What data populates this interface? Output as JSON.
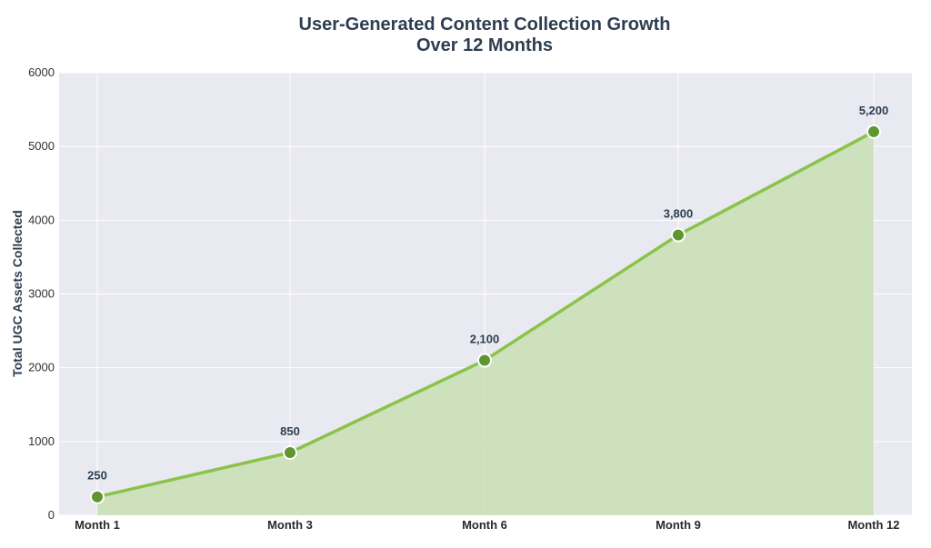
{
  "chart_data": {
    "type": "area",
    "title_lines": [
      "User-Generated Content Collection Growth",
      "Over 12 Months"
    ],
    "xlabel": "",
    "ylabel": "Total UGC Assets Collected",
    "categories": [
      "Month 1",
      "Month 3",
      "Month 6",
      "Month 9",
      "Month 12"
    ],
    "values": [
      250,
      850,
      2100,
      3800,
      5200
    ],
    "data_labels": [
      "250",
      "850",
      "2,100",
      "3,800",
      "5,200"
    ],
    "ylim": [
      0,
      6000
    ],
    "yticks": [
      "0",
      "1000",
      "2000",
      "3000",
      "4000",
      "5000",
      "6000"
    ],
    "grid": true,
    "colors": {
      "line": "#8bc34a",
      "fill": "#c9dfb4",
      "marker": "#5e9732",
      "marker_edge": "#ffffff",
      "plot_bg": "#e9e9f2",
      "grid": "#ffffff",
      "title": "#2e3e50"
    }
  }
}
